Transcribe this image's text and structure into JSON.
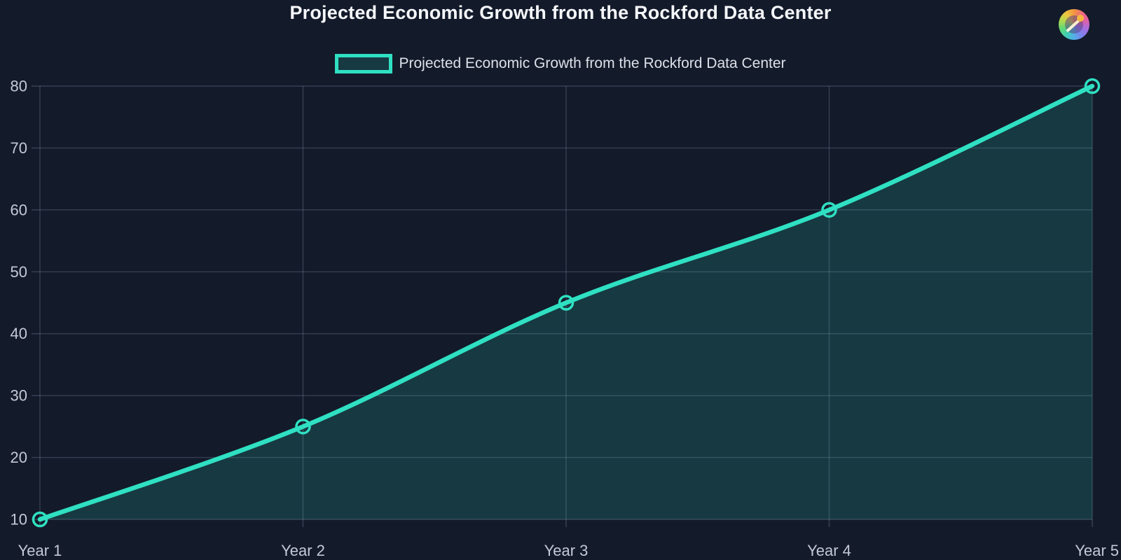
{
  "header": {
    "title": "Projected Economic Growth from the Rockford Data Center"
  },
  "legend": {
    "label": "Projected Economic Growth from the Rockford Data Center"
  },
  "icons": {
    "brand": "color-wheel-needle-logo"
  },
  "chart_data": {
    "type": "line",
    "title": "Projected Economic Growth from the Rockford Data Center",
    "categories": [
      "Year 1",
      "Year 2",
      "Year 3",
      "Year 4",
      "Year 5"
    ],
    "series": [
      {
        "name": "Projected Economic Growth from the Rockford Data Center",
        "values": [
          10,
          25,
          45,
          60,
          80
        ]
      }
    ],
    "xlabel": "",
    "ylabel": "",
    "ylim": [
      10,
      80
    ],
    "yticks": [
      10,
      20,
      30,
      40,
      50,
      60,
      70,
      80
    ],
    "grid": true,
    "smooth": true,
    "area_fill": true,
    "legend_position": "top-center",
    "colors": {
      "background": "#131a2a",
      "line": "#2fe0c2",
      "area": "rgba(47, 224, 194, 0.16)",
      "grid": "rgba(145, 158, 182, 0.28)",
      "tick_label": "#c3c9d6",
      "title": "#f5f7fa",
      "legend_text": "#dce0e8"
    }
  }
}
